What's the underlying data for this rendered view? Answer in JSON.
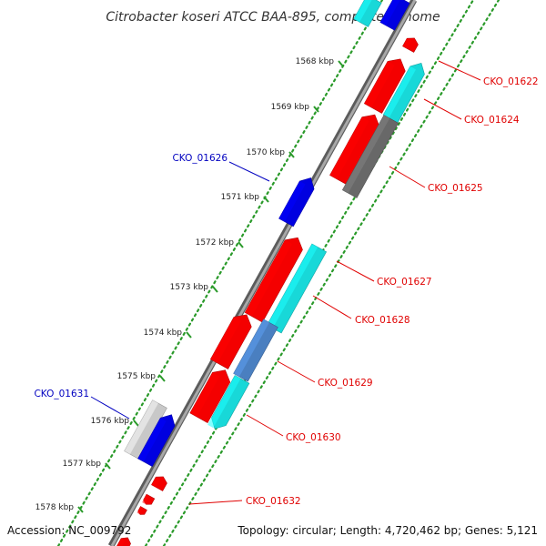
{
  "title": "Citrobacter koseri ATCC BAA-895, complete genome",
  "footer": {
    "accession": "Accession: NC_009792",
    "summary": "Topology: circular; Length: 4,720,462 bp; Genes: 5,121"
  },
  "ruler": {
    "ticks": [
      "1568 kbp",
      "1569 kbp",
      "1570 kbp",
      "1571 kbp",
      "1572 kbp",
      "1573 kbp",
      "1574 kbp",
      "1575 kbp",
      "1576 kbp",
      "1577 kbp",
      "1578 kbp"
    ]
  },
  "colors": {
    "forward_strand": "#f40000",
    "cyan": "#18d8d8",
    "blue": "#0000e0",
    "dark_gray": "#686868",
    "light_gray": "#c8c8c8",
    "steel_blue": "#4a7fc0",
    "backbone": "#888888",
    "dots": "#2a9a2a",
    "reverse_label": "#e00000",
    "forward_label": "#0000c0"
  },
  "genes": [
    {
      "id": "CKO_01622",
      "label": "CKO_01622",
      "color": "cyan"
    },
    {
      "id": "CKO_01624",
      "label": "CKO_01624",
      "color": "cyan"
    },
    {
      "id": "CKO_01625",
      "label": "CKO_01625",
      "color": "dark_gray"
    },
    {
      "id": "CKO_01626",
      "label": "CKO_01626",
      "color": "blue"
    },
    {
      "id": "CKO_01627",
      "label": "CKO_01627",
      "color": "red"
    },
    {
      "id": "CKO_01628",
      "label": "CKO_01628",
      "color": "cyan"
    },
    {
      "id": "CKO_01629",
      "label": "CKO_01629",
      "color": "steel_blue"
    },
    {
      "id": "CKO_01630",
      "label": "CKO_01630",
      "color": "cyan"
    },
    {
      "id": "CKO_01631",
      "label": "CKO_01631",
      "color": "light_gray"
    },
    {
      "id": "CKO_01632",
      "label": "CKO_01632",
      "color": "red"
    }
  ]
}
